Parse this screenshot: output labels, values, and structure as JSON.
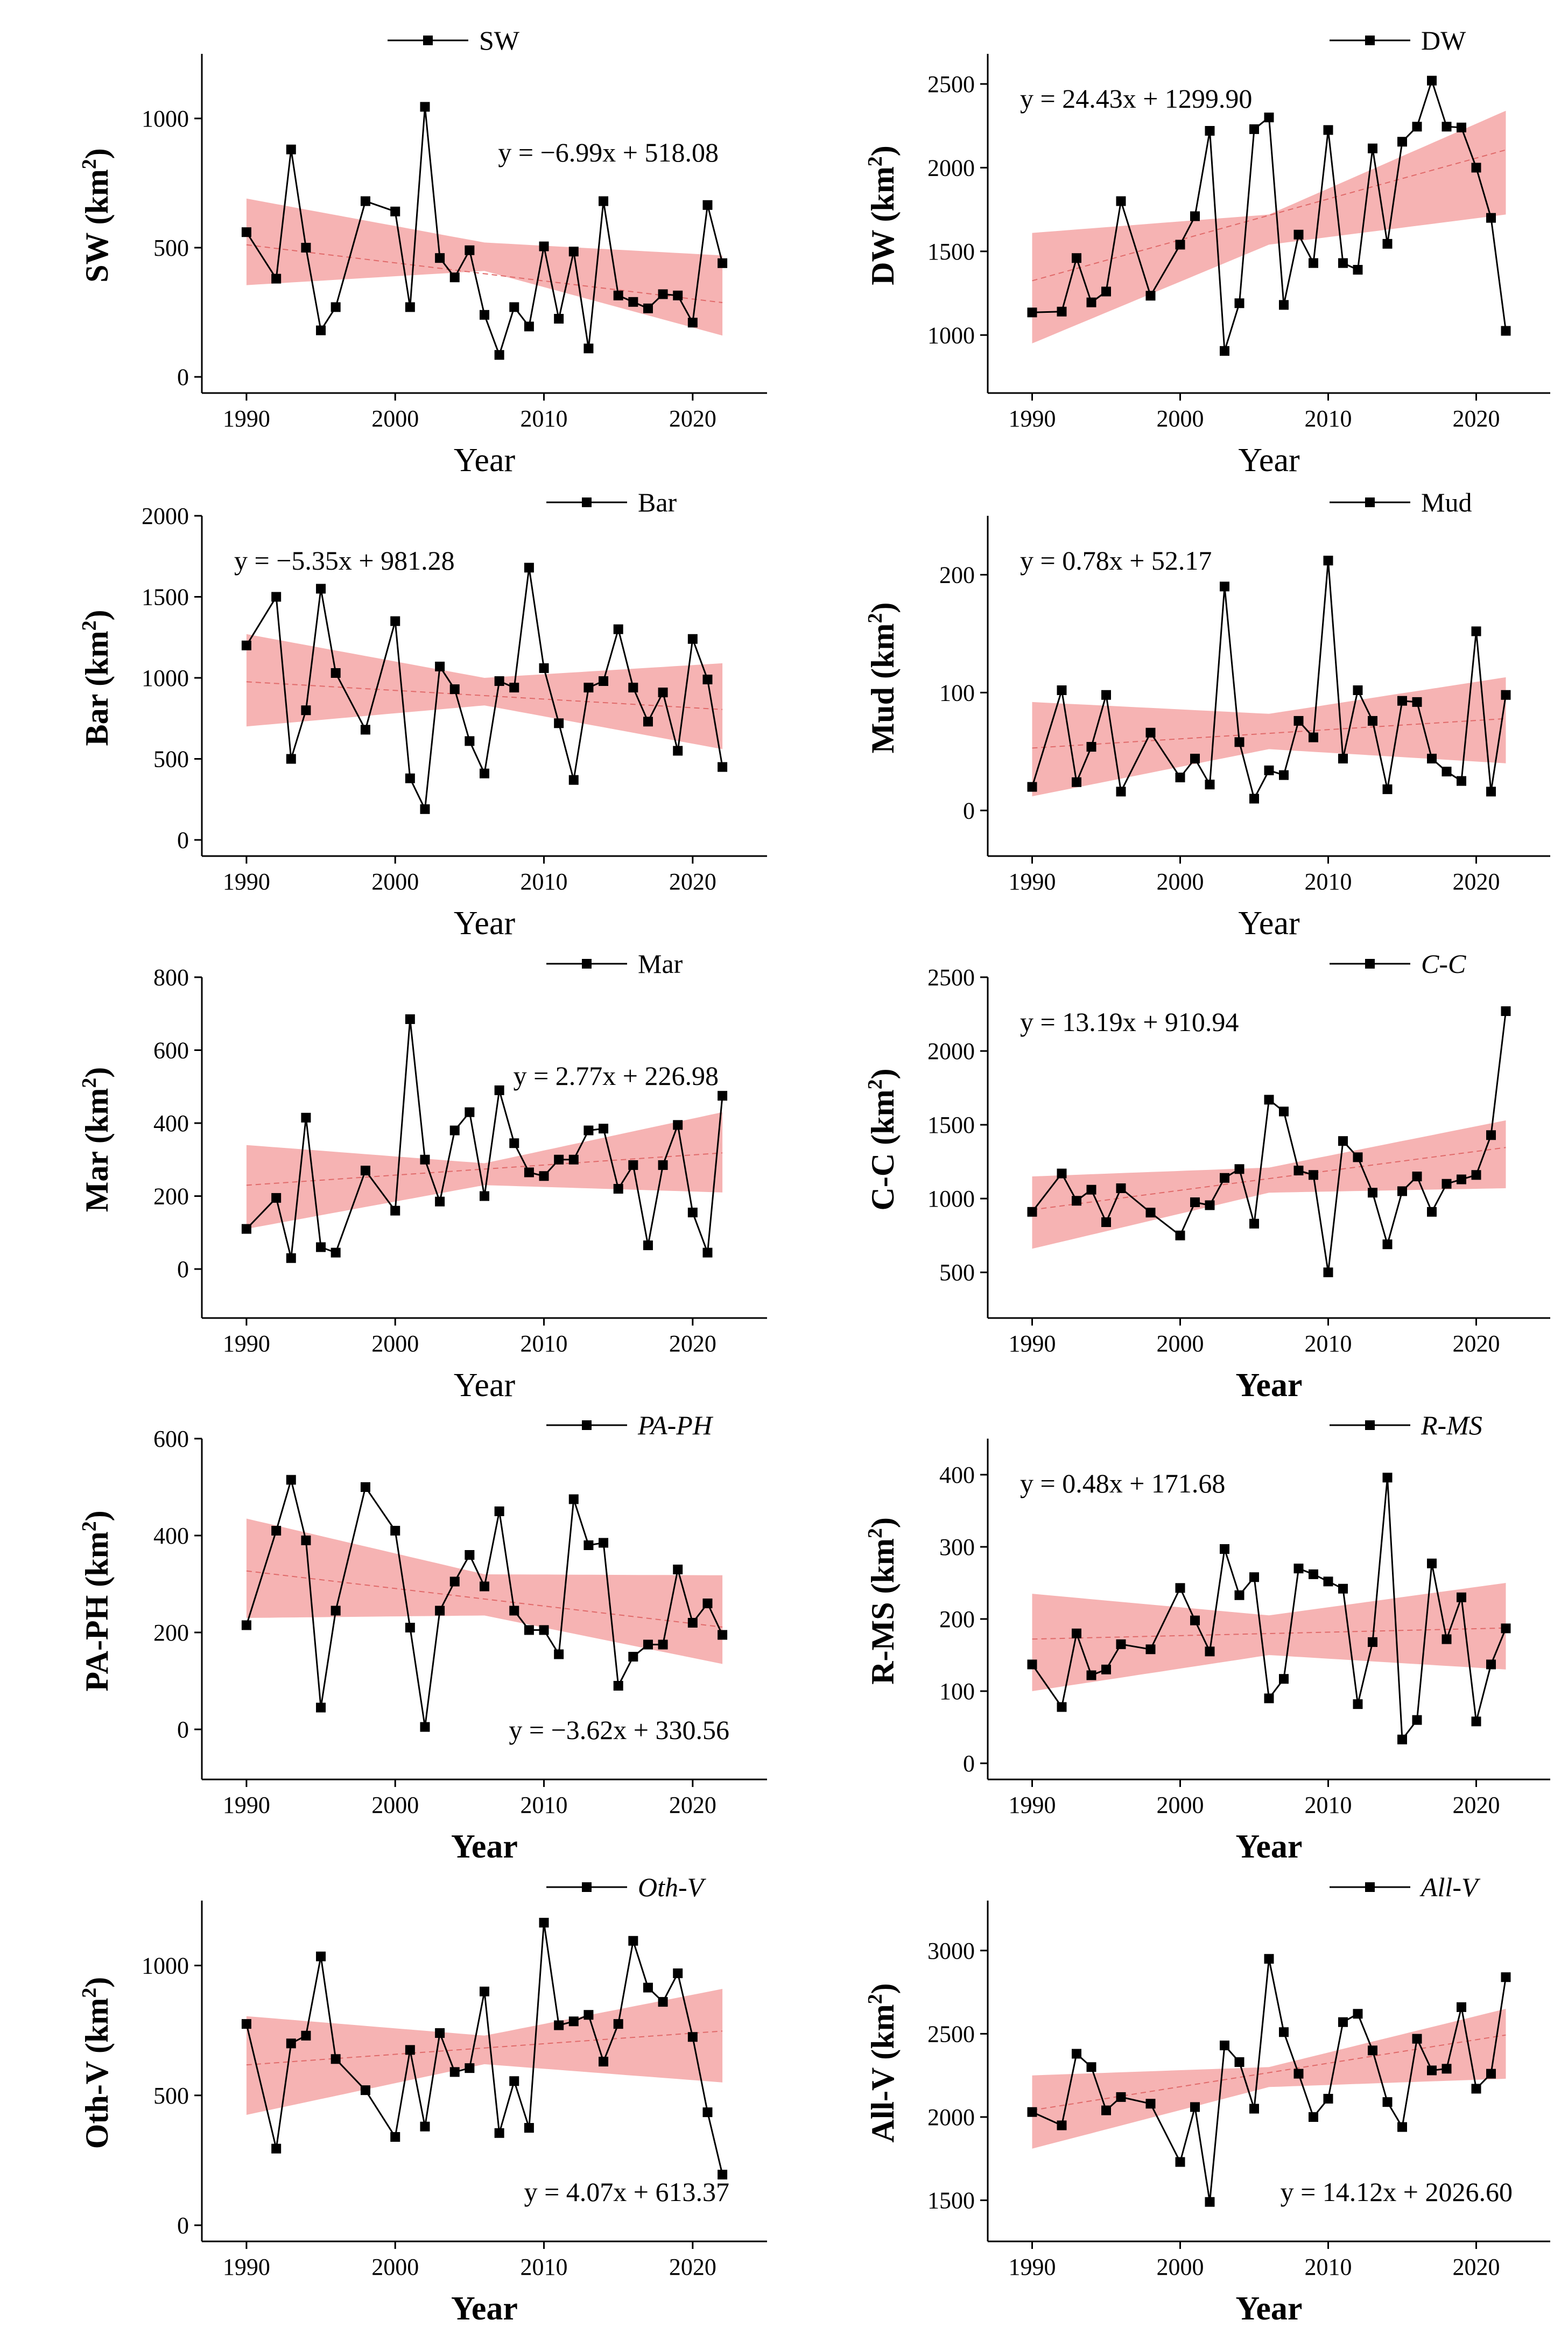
{
  "colors": {
    "line": "#000000",
    "band_fill": "#f4a6a6",
    "trend": "#e06a6a",
    "axis": "#000000"
  },
  "chart_data": [
    {
      "type": "line",
      "series_name": "SW",
      "legend_italic": false,
      "title": "",
      "xlabel": "Year",
      "xlabel_bold": false,
      "ylabel": "SW (km",
      "ylabel_unit_sup": "2",
      "ylabel_close": ")",
      "xlim": [
        1987,
        2025
      ],
      "ylim": [
        0,
        1250
      ],
      "xticks": [
        1990,
        2000,
        2010,
        2020
      ],
      "yticks": [
        0,
        500,
        1000
      ],
      "legend_loc": "top-center",
      "equation": "y = −6.99x + 518.08",
      "equation_loc": "upper-right",
      "trend": {
        "slope": -6.99,
        "intercept": 518.08
      },
      "band": {
        "x": [
          1990,
          2006,
          2022
        ],
        "lower": [
          355,
          410,
          160
        ],
        "upper": [
          690,
          520,
          470
        ]
      },
      "x": [
        1990,
        1992,
        1993,
        1994,
        1995,
        1996,
        1998,
        2000,
        2001,
        2002,
        2003,
        2004,
        2005,
        2006,
        2007,
        2008,
        2009,
        2010,
        2011,
        2012,
        2013,
        2014,
        2015,
        2016,
        2017,
        2018,
        2019,
        2020,
        2021,
        2022
      ],
      "y": [
        560,
        380,
        880,
        500,
        180,
        270,
        680,
        640,
        270,
        1045,
        460,
        385,
        490,
        240,
        85,
        270,
        195,
        505,
        225,
        485,
        110,
        680,
        315,
        290,
        265,
        320,
        315,
        210,
        665,
        440
      ]
    },
    {
      "type": "line",
      "series_name": "DW",
      "legend_italic": false,
      "title": "",
      "xlabel": "Year",
      "xlabel_bold": false,
      "ylabel": "DW (km",
      "ylabel_unit_sup": "2",
      "ylabel_close": ")",
      "xlim": [
        1987,
        2025
      ],
      "ylim": [
        750,
        2680
      ],
      "xticks": [
        1990,
        2000,
        2010,
        2020
      ],
      "yticks": [
        1000,
        1500,
        2000,
        2500
      ],
      "legend_loc": "top-right",
      "equation": "y = 24.43x + 1299.90",
      "equation_loc": "upper-left",
      "trend": {
        "slope": 24.43,
        "intercept": 1299.9
      },
      "band": {
        "x": [
          1990,
          2006,
          2022
        ],
        "lower": [
          950,
          1540,
          1720
        ],
        "upper": [
          1610,
          1720,
          2340
        ]
      },
      "x": [
        1990,
        1992,
        1993,
        1994,
        1995,
        1996,
        1998,
        2000,
        2001,
        2002,
        2003,
        2004,
        2005,
        2006,
        2007,
        2008,
        2009,
        2010,
        2011,
        2012,
        2013,
        2014,
        2015,
        2016,
        2017,
        2018,
        2019,
        2020,
        2021,
        2022
      ],
      "y": [
        1135,
        1140,
        1460,
        1195,
        1260,
        1800,
        1235,
        1540,
        1710,
        2220,
        905,
        1190,
        2230,
        2300,
        1180,
        1600,
        1430,
        2225,
        1430,
        1390,
        2115,
        1545,
        2155,
        2245,
        2520,
        2245,
        2240,
        2000,
        1700,
        1025
      ]
    },
    {
      "type": "line",
      "series_name": "Bar",
      "legend_italic": false,
      "title": "",
      "xlabel": "Year",
      "xlabel_bold": false,
      "ylabel": "Bar (km",
      "ylabel_unit_sup": "2",
      "ylabel_close": ")",
      "xlim": [
        1987,
        2025
      ],
      "ylim": [
        0,
        2000
      ],
      "xticks": [
        1990,
        2000,
        2010,
        2020
      ],
      "yticks": [
        0,
        500,
        1000,
        1500,
        2000
      ],
      "legend_loc": "top-right",
      "equation": "y = −5.35x + 981.28",
      "equation_loc": "upper-left",
      "trend": {
        "slope": -5.35,
        "intercept": 981.28
      },
      "band": {
        "x": [
          1990,
          2006,
          2022
        ],
        "lower": [
          700,
          830,
          560
        ],
        "upper": [
          1270,
          1000,
          1090
        ]
      },
      "x": [
        1990,
        1992,
        1993,
        1994,
        1995,
        1996,
        1998,
        2000,
        2001,
        2002,
        2003,
        2004,
        2005,
        2006,
        2007,
        2008,
        2009,
        2010,
        2011,
        2012,
        2013,
        2014,
        2015,
        2016,
        2017,
        2018,
        2019,
        2020,
        2021,
        2022
      ],
      "y": [
        1200,
        1500,
        500,
        800,
        1550,
        1030,
        680,
        1350,
        380,
        190,
        1070,
        930,
        610,
        410,
        980,
        940,
        1680,
        1060,
        720,
        370,
        940,
        980,
        1300,
        940,
        730,
        910,
        550,
        1240,
        990,
        450
      ]
    },
    {
      "type": "line",
      "series_name": "Mud",
      "legend_italic": false,
      "title": "",
      "xlabel": "Year",
      "xlabel_bold": false,
      "ylabel": "Mud (km",
      "ylabel_unit_sup": "2",
      "ylabel_close": ")",
      "xlim": [
        1987,
        2025
      ],
      "ylim": [
        -25,
        250
      ],
      "xticks": [
        1990,
        2000,
        2010,
        2020
      ],
      "yticks": [
        0,
        100,
        200
      ],
      "legend_loc": "top-right",
      "equation": "y = 0.78x + 52.17",
      "equation_loc": "upper-left",
      "trend": {
        "slope": 0.78,
        "intercept": 52.17
      },
      "band": {
        "x": [
          1990,
          2006,
          2022
        ],
        "lower": [
          12,
          52,
          40
        ],
        "upper": [
          92,
          82,
          113
        ]
      },
      "x": [
        1990,
        1992,
        1993,
        1994,
        1995,
        1996,
        1998,
        2000,
        2001,
        2002,
        2003,
        2004,
        2005,
        2006,
        2007,
        2008,
        2009,
        2010,
        2011,
        2012,
        2013,
        2014,
        2015,
        2016,
        2017,
        2018,
        2019,
        2020,
        2021,
        2022
      ],
      "y": [
        20,
        102,
        24,
        54,
        98,
        16,
        66,
        28,
        44,
        22,
        190,
        58,
        10,
        34,
        30,
        76,
        62,
        212,
        44,
        102,
        76,
        18,
        93,
        92,
        44,
        33,
        25,
        152,
        16,
        98
      ]
    },
    {
      "type": "line",
      "series_name": "Mar",
      "legend_italic": false,
      "title": "",
      "xlabel": "Year",
      "xlabel_bold": false,
      "ylabel": "Mar (km",
      "ylabel_unit_sup": "2",
      "ylabel_close": ")",
      "xlim": [
        1987,
        2025
      ],
      "ylim": [
        -90,
        800
      ],
      "xticks": [
        1990,
        2000,
        2010,
        2020
      ],
      "yticks": [
        0,
        200,
        400,
        600,
        800
      ],
      "legend_loc": "top-right",
      "equation": "y = 2.77x + 226.98",
      "equation_loc": "upper-right",
      "trend": {
        "slope": 2.77,
        "intercept": 226.98
      },
      "band": {
        "x": [
          1990,
          2006,
          2022
        ],
        "lower": [
          110,
          230,
          210
        ],
        "upper": [
          340,
          290,
          430
        ]
      },
      "x": [
        1990,
        1992,
        1993,
        1994,
        1995,
        1996,
        1998,
        2000,
        2001,
        2002,
        2003,
        2004,
        2005,
        2006,
        2007,
        2008,
        2009,
        2010,
        2011,
        2012,
        2013,
        2014,
        2015,
        2016,
        2017,
        2018,
        2019,
        2020,
        2021,
        2022
      ],
      "y": [
        110,
        195,
        30,
        415,
        60,
        45,
        270,
        160,
        685,
        300,
        185,
        380,
        430,
        200,
        490,
        345,
        265,
        255,
        300,
        300,
        380,
        385,
        220,
        285,
        65,
        285,
        395,
        155,
        45,
        475
      ]
    },
    {
      "type": "line",
      "series_name": "C-C",
      "legend_italic": true,
      "title": "",
      "xlabel": "Year",
      "xlabel_bold": true,
      "ylabel": "C-C (km",
      "ylabel_unit_sup": "2",
      "ylabel_close": ")",
      "xlim": [
        1987,
        2025
      ],
      "ylim": [
        300,
        2500
      ],
      "xticks": [
        1990,
        2000,
        2010,
        2020
      ],
      "yticks": [
        500,
        1000,
        1500,
        2000,
        2500
      ],
      "legend_loc": "top-right",
      "equation": "y = 13.19x + 910.94",
      "equation_loc": "upper-left",
      "trend": {
        "slope": 13.19,
        "intercept": 910.94
      },
      "band": {
        "x": [
          1990,
          2006,
          2022
        ],
        "lower": [
          660,
          1040,
          1070
        ],
        "upper": [
          1150,
          1210,
          1530
        ]
      },
      "x": [
        1990,
        1992,
        1993,
        1994,
        1995,
        1996,
        1998,
        2000,
        2001,
        2002,
        2003,
        2004,
        2005,
        2006,
        2007,
        2008,
        2009,
        2010,
        2011,
        2012,
        2013,
        2014,
        2015,
        2016,
        2017,
        2018,
        2019,
        2020,
        2021,
        2022
      ],
      "y": [
        910,
        1170,
        985,
        1060,
        840,
        1070,
        905,
        750,
        975,
        955,
        1140,
        1200,
        830,
        1670,
        1590,
        1190,
        1160,
        500,
        1390,
        1280,
        1040,
        690,
        1050,
        1150,
        910,
        1100,
        1130,
        1160,
        1430,
        2270
      ]
    },
    {
      "type": "line",
      "series_name": "PA-PH",
      "legend_italic": true,
      "title": "",
      "xlabel": "Year",
      "xlabel_bold": true,
      "ylabel": "PA-PH (km",
      "ylabel_unit_sup": "2",
      "ylabel_close": ")",
      "xlim": [
        1987,
        2025
      ],
      "ylim": [
        -70,
        600
      ],
      "xticks": [
        1990,
        2000,
        2010,
        2020
      ],
      "yticks": [
        0,
        200,
        400,
        600
      ],
      "legend_loc": "top-right",
      "equation": "y = −3.62x + 330.56",
      "equation_loc": "lower-right",
      "trend": {
        "slope": -3.62,
        "intercept": 330.56
      },
      "band": {
        "x": [
          1990,
          2006,
          2022
        ],
        "lower": [
          230,
          235,
          135
        ],
        "upper": [
          435,
          320,
          318
        ]
      },
      "x": [
        1990,
        1992,
        1993,
        1994,
        1995,
        1996,
        1998,
        2000,
        2001,
        2002,
        2003,
        2004,
        2005,
        2006,
        2007,
        2008,
        2009,
        2010,
        2011,
        2012,
        2013,
        2014,
        2015,
        2016,
        2017,
        2018,
        2019,
        2020,
        2021,
        2022
      ],
      "y": [
        215,
        410,
        515,
        390,
        45,
        245,
        500,
        410,
        210,
        5,
        245,
        305,
        360,
        295,
        450,
        245,
        205,
        205,
        155,
        475,
        380,
        385,
        90,
        150,
        175,
        175,
        330,
        220,
        260,
        195
      ]
    },
    {
      "type": "line",
      "series_name": "R-MS",
      "legend_italic": true,
      "title": "",
      "xlabel": "Year",
      "xlabel_bold": true,
      "ylabel": "R-MS (km",
      "ylabel_unit_sup": "2",
      "ylabel_close": ")",
      "xlim": [
        1987,
        2025
      ],
      "ylim": [
        0,
        450
      ],
      "xticks": [
        1990,
        2000,
        2010,
        2020
      ],
      "yticks": [
        0,
        100,
        200,
        300,
        400
      ],
      "legend_loc": "top-right",
      "equation": "y = 0.48x + 171.68",
      "equation_loc": "upper-left",
      "trend": {
        "slope": 0.48,
        "intercept": 171.68
      },
      "band": {
        "x": [
          1990,
          2006,
          2022
        ],
        "lower": [
          100,
          150,
          130
        ],
        "upper": [
          235,
          205,
          250
        ]
      },
      "x": [
        1990,
        1992,
        1993,
        1994,
        1995,
        1996,
        1998,
        2000,
        2001,
        2002,
        2003,
        2004,
        2005,
        2006,
        2007,
        2008,
        2009,
        2010,
        2011,
        2012,
        2013,
        2014,
        2015,
        2016,
        2017,
        2018,
        2019,
        2020,
        2021,
        2022
      ],
      "y": [
        137,
        78,
        180,
        122,
        130,
        165,
        158,
        243,
        198,
        155,
        297,
        233,
        258,
        90,
        117,
        270,
        262,
        252,
        242,
        82,
        168,
        396,
        33,
        60,
        277,
        172,
        230,
        58,
        137,
        187
      ]
    },
    {
      "type": "line",
      "series_name": "Oth-V",
      "legend_italic": true,
      "title": "",
      "xlabel": "Year",
      "xlabel_bold": true,
      "ylabel": "Oth-V (km",
      "ylabel_unit_sup": "2",
      "ylabel_close": ")",
      "xlim": [
        1987,
        2025
      ],
      "ylim": [
        0,
        1250
      ],
      "xticks": [
        1990,
        2000,
        2010,
        2020
      ],
      "yticks": [
        0,
        500,
        1000
      ],
      "legend_loc": "top-right",
      "equation": "y = 4.07x + 613.37",
      "equation_loc": "lower-right",
      "trend": {
        "slope": 4.07,
        "intercept": 613.37
      },
      "band": {
        "x": [
          1990,
          2006,
          2022
        ],
        "lower": [
          425,
          620,
          550
        ],
        "upper": [
          805,
          730,
          910
        ]
      },
      "x": [
        1990,
        1992,
        1993,
        1994,
        1995,
        1996,
        1998,
        2000,
        2001,
        2002,
        2003,
        2004,
        2005,
        2006,
        2007,
        2008,
        2009,
        2010,
        2011,
        2012,
        2013,
        2014,
        2015,
        2016,
        2017,
        2018,
        2019,
        2020,
        2021,
        2022
      ],
      "y": [
        775,
        295,
        700,
        730,
        1035,
        640,
        520,
        340,
        675,
        380,
        740,
        590,
        605,
        900,
        355,
        555,
        375,
        1165,
        770,
        785,
        810,
        630,
        775,
        1095,
        915,
        860,
        970,
        725,
        435,
        195
      ]
    },
    {
      "type": "line",
      "series_name": "All-V",
      "legend_italic": true,
      "title": "",
      "xlabel": "Year",
      "xlabel_bold": true,
      "ylabel": "All-V (km",
      "ylabel_unit_sup": "2",
      "ylabel_close": ")",
      "xlim": [
        1987,
        2025
      ],
      "ylim": [
        1350,
        3300
      ],
      "xticks": [
        1990,
        2000,
        2010,
        2020
      ],
      "yticks": [
        1500,
        2000,
        2500,
        3000
      ],
      "legend_loc": "top-right",
      "equation": "y = 14.12x + 2026.60",
      "equation_loc": "lower-right",
      "trend": {
        "slope": 14.12,
        "intercept": 2026.6
      },
      "band": {
        "x": [
          1990,
          2006,
          2022
        ],
        "lower": [
          1810,
          2180,
          2230
        ],
        "upper": [
          2250,
          2300,
          2650
        ]
      },
      "x": [
        1990,
        1992,
        1993,
        1994,
        1995,
        1996,
        1998,
        2000,
        2001,
        2002,
        2003,
        2004,
        2005,
        2006,
        2007,
        2008,
        2009,
        2010,
        2011,
        2012,
        2013,
        2014,
        2015,
        2016,
        2017,
        2018,
        2019,
        2020,
        2021,
        2022
      ],
      "y": [
        2030,
        1950,
        2380,
        2300,
        2040,
        2120,
        2080,
        1730,
        2060,
        1490,
        2430,
        2330,
        2050,
        2950,
        2510,
        2260,
        2000,
        2110,
        2570,
        2620,
        2400,
        2090,
        1940,
        2470,
        2280,
        2290,
        2660,
        2170,
        2260,
        2840
      ]
    }
  ]
}
